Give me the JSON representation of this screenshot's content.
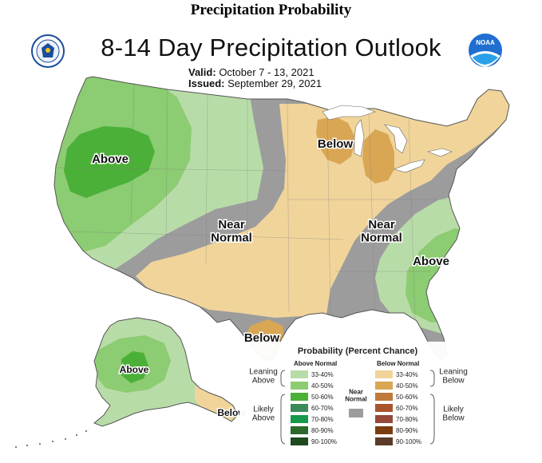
{
  "header": {
    "page_title": "Precipitation Probability",
    "map_title": "8-14 Day Precipitation Outlook",
    "valid_label": "Valid:",
    "valid_value": "October 7 - 13, 2021",
    "issued_label": "Issued:",
    "issued_value": "September 29, 2021"
  },
  "logos": {
    "left": "department-of-commerce-seal",
    "right": "noaa-logo",
    "right_text": "NOAA"
  },
  "map_labels": {
    "above_west": "Above",
    "below_great_lakes": "Below",
    "near_normal_plains": "Near\nNormal",
    "near_normal_east": "Near\nNormal",
    "above_southeast": "Above",
    "below_texas": "Below",
    "above_alaska": "Above",
    "below_alaska": "Below"
  },
  "legend": {
    "title": "Probability (Percent Chance)",
    "above_header": "Above Normal",
    "below_header": "Below Normal",
    "near_normal_label": "Near\nNormal",
    "near_normal_color": "#9c9c9c",
    "leaning_above": "Leaning\nAbove",
    "likely_above": "Likely\nAbove",
    "leaning_below": "Leaning\nBelow",
    "likely_below": "Likely\nBelow",
    "above": [
      {
        "range": "33-40%",
        "color": "#b8dca8"
      },
      {
        "range": "40-50%",
        "color": "#8ccc72"
      },
      {
        "range": "50-60%",
        "color": "#4bb038"
      },
      {
        "range": "60-70%",
        "color": "#3a8a5a"
      },
      {
        "range": "70-80%",
        "color": "#149a4a"
      },
      {
        "range": "80-90%",
        "color": "#2a6a2a"
      },
      {
        "range": "90-100%",
        "color": "#1f4a1f"
      }
    ],
    "below": [
      {
        "range": "33-40%",
        "color": "#f0d49a"
      },
      {
        "range": "40-50%",
        "color": "#d9a654"
      },
      {
        "range": "50-60%",
        "color": "#bf7a3a"
      },
      {
        "range": "60-70%",
        "color": "#a8552e"
      },
      {
        "range": "70-80%",
        "color": "#96483a"
      },
      {
        "range": "80-90%",
        "color": "#7a3c10"
      },
      {
        "range": "90-100%",
        "color": "#5a3b2a"
      }
    ]
  },
  "colors": {
    "ocean": "#ffffff",
    "above_33": "#b8dca8",
    "above_40": "#8ccc72",
    "above_50": "#4bb038",
    "near_normal": "#9c9c9c",
    "below_33": "#f0d49a",
    "below_40": "#d9a654"
  }
}
